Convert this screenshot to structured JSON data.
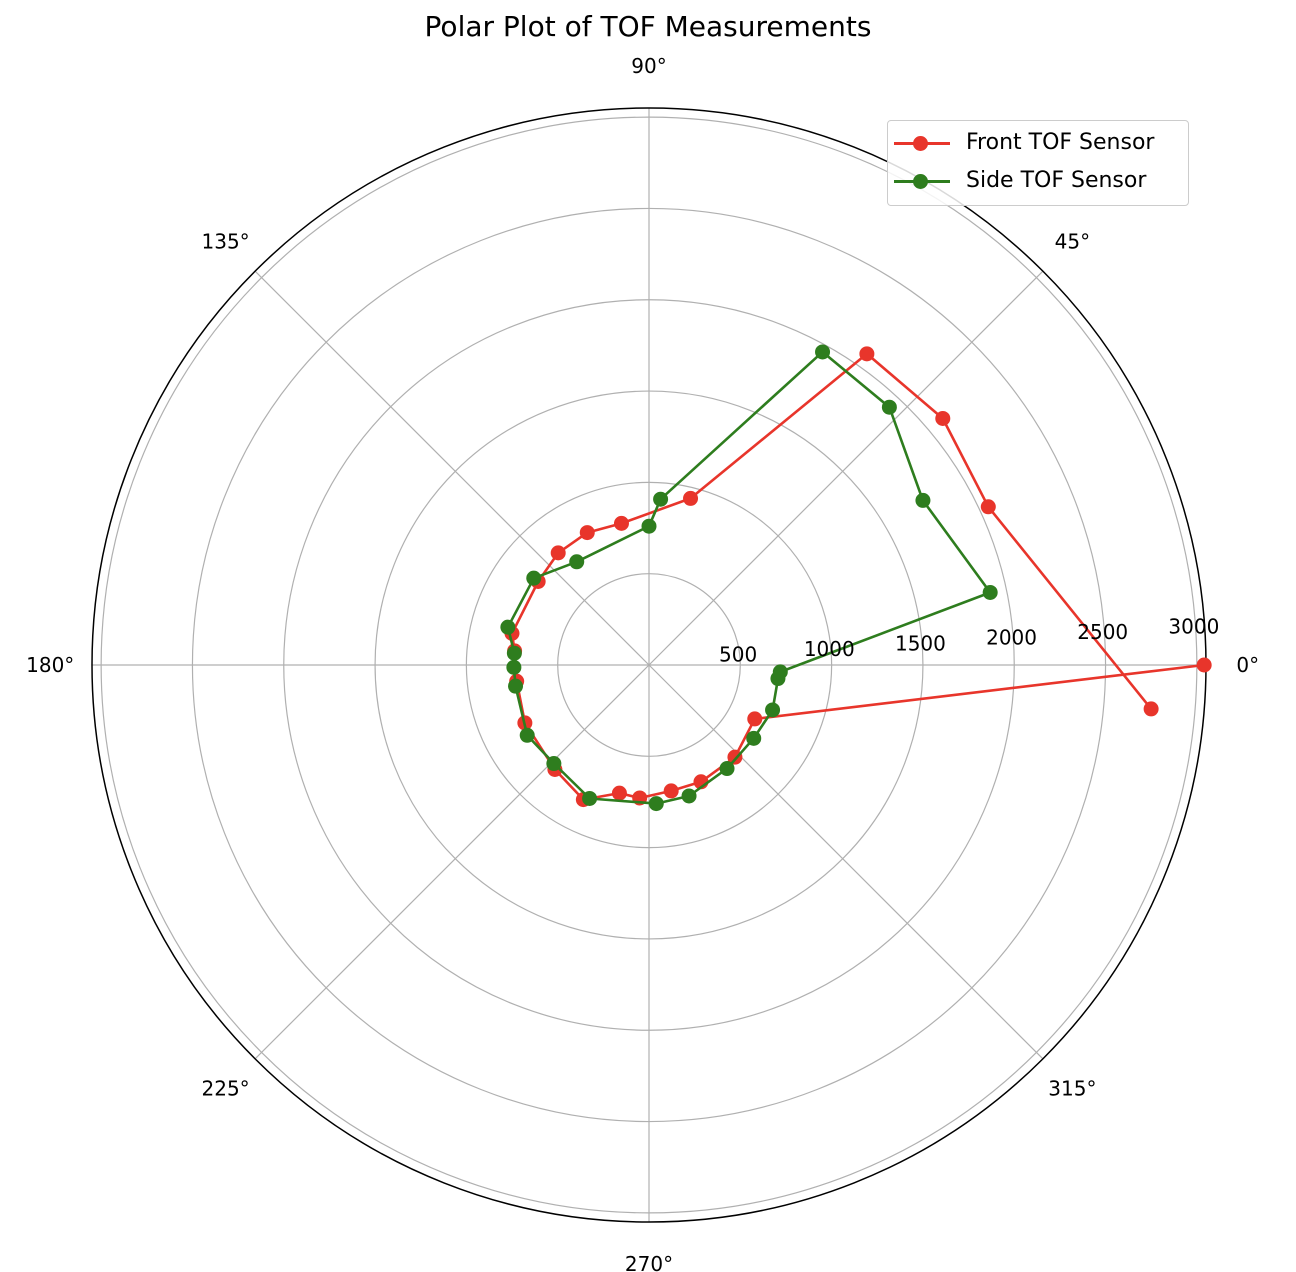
{
  "chart_data": {
    "type": "polar",
    "title": "Polar Plot of TOF Measurements",
    "angle_ticks": [
      "0°",
      "45°",
      "90°",
      "135°",
      "180°",
      "225°",
      "270°",
      "315°"
    ],
    "angle_tick_values": [
      0,
      45,
      90,
      135,
      180,
      225,
      270,
      315
    ],
    "radial_ticks": [
      "500",
      "1000",
      "1500",
      "2000",
      "2500",
      "3000"
    ],
    "radial_tick_values": [
      500,
      1000,
      1500,
      2000,
      2500,
      3000
    ],
    "rlim": [
      0,
      3050
    ],
    "grid": true,
    "legend_position": "top-right",
    "series": [
      {
        "name": "Front TOF Sensor",
        "color": "#e8352b",
        "points": [
          {
            "theta": 355,
            "r": 2760
          },
          {
            "theta": 25,
            "r": 2050
          },
          {
            "theta": 40,
            "r": 2100
          },
          {
            "theta": 55,
            "r": 2080
          },
          {
            "theta": 76,
            "r": 940
          },
          {
            "theta": 101,
            "r": 790
          },
          {
            "theta": 115,
            "r": 800
          },
          {
            "theta": 129,
            "r": 790
          },
          {
            "theta": 143,
            "r": 760
          },
          {
            "theta": 167,
            "r": 770
          },
          {
            "theta": 174,
            "r": 740
          },
          {
            "theta": 187,
            "r": 730
          },
          {
            "theta": 205,
            "r": 750
          },
          {
            "theta": 228,
            "r": 770
          },
          {
            "theta": 244,
            "r": 820
          },
          {
            "theta": 257,
            "r": 720
          },
          {
            "theta": 266,
            "r": 730
          },
          {
            "theta": 280,
            "r": 700
          },
          {
            "theta": 294,
            "r": 700
          },
          {
            "theta": 313,
            "r": 690
          },
          {
            "theta": 333,
            "r": 650
          },
          {
            "theta": 0,
            "r": 3040
          }
        ]
      },
      {
        "name": "Side TOF Sensor",
        "color": "#2e7d1e",
        "points": [
          {
            "theta": 354,
            "r": 710
          },
          {
            "theta": 340,
            "r": 720
          },
          {
            "theta": 325,
            "r": 700
          },
          {
            "theta": 307,
            "r": 710
          },
          {
            "theta": 287,
            "r": 750
          },
          {
            "theta": 273,
            "r": 760
          },
          {
            "theta": 246,
            "r": 800
          },
          {
            "theta": 226,
            "r": 750
          },
          {
            "theta": 210,
            "r": 770
          },
          {
            "theta": 189,
            "r": 740
          },
          {
            "theta": 181,
            "r": 740
          },
          {
            "theta": 175,
            "r": 740
          },
          {
            "theta": 165,
            "r": 800
          },
          {
            "theta": 143,
            "r": 790
          },
          {
            "theta": 125,
            "r": 690
          },
          {
            "theta": 90,
            "r": 760
          },
          {
            "theta": 86,
            "r": 910
          },
          {
            "theta": 61,
            "r": 1960
          },
          {
            "theta": 47,
            "r": 1930
          },
          {
            "theta": 31,
            "r": 1750
          },
          {
            "theta": 12,
            "r": 1910
          },
          {
            "theta": 357,
            "r": 720
          }
        ]
      }
    ]
  }
}
